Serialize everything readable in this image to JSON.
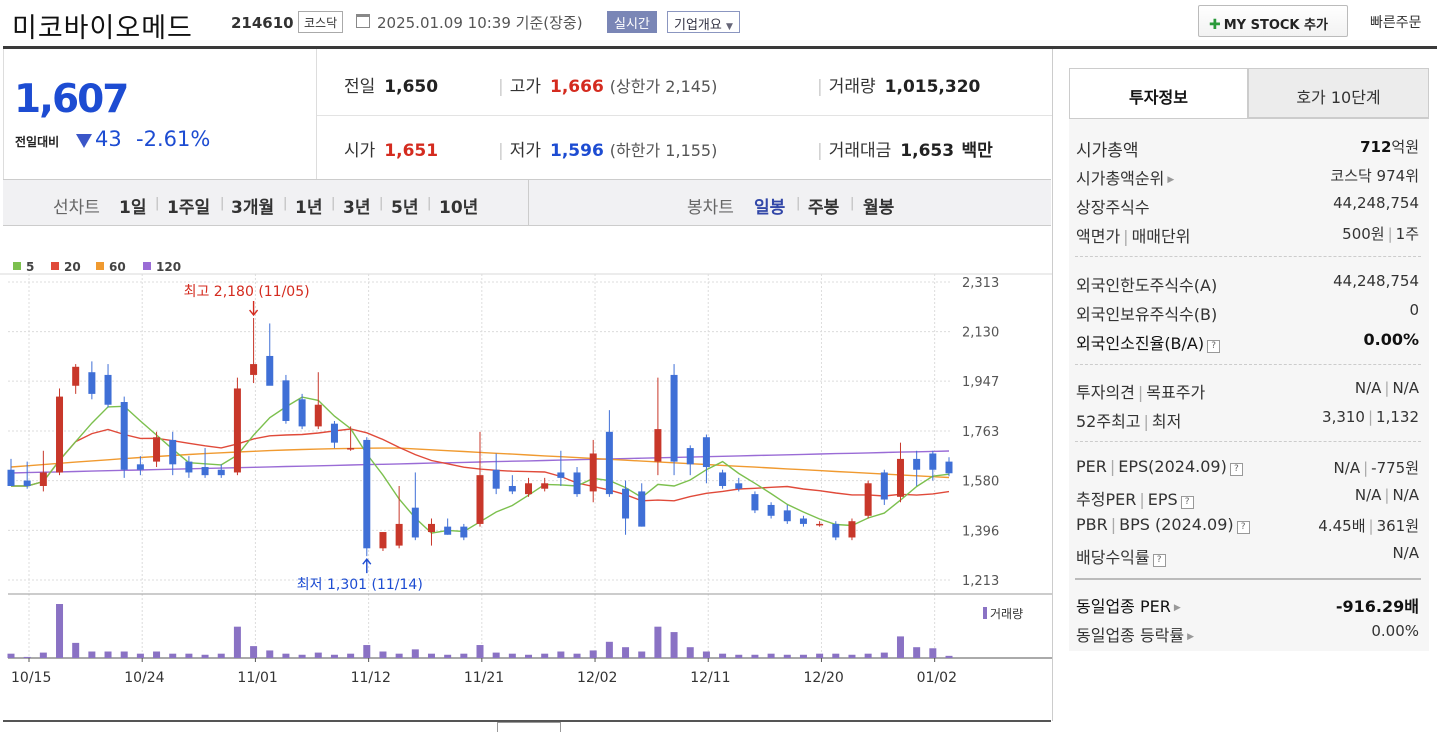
{
  "header": {
    "company_name": "미코바이오메드",
    "stock_code": "214610",
    "market_badge": "코스닥",
    "datetime": "2025.01.09 10:39",
    "basis": "기준(장중)",
    "realtime_label": "실시간",
    "overview_label": "기업개요",
    "mystock_label": "MY STOCK 추가",
    "quick_order_label": "빠른주문"
  },
  "price": {
    "current": "1,607",
    "change_label": "전일대비",
    "change": "43",
    "change_pct": "-2.61%",
    "prev_close_label": "전일",
    "prev_close": "1,650",
    "open_label": "시가",
    "open": "1,651",
    "high_label": "고가",
    "high": "1,666",
    "upper_limit_label": "(상한가",
    "upper_limit": "2,145)",
    "low_label": "저가",
    "low": "1,596",
    "lower_limit_label": "(하한가",
    "lower_limit": "1,155)",
    "volume_label": "거래량",
    "volume": "1,015,320",
    "amount_label": "거래대금",
    "amount": "1,653",
    "amount_unit": "백만"
  },
  "period_bar": {
    "line_chart_label": "선차트",
    "periods": [
      "1일",
      "1주일",
      "3개월",
      "1년",
      "3년",
      "5년",
      "10년"
    ],
    "candle_label": "봉차트",
    "candle_types": [
      "일봉",
      "주봉",
      "월봉"
    ],
    "selected_candle": "일봉"
  },
  "right_panel": {
    "tabs": [
      "투자정보",
      "호가 10단계"
    ],
    "active_tab": "투자정보",
    "market_cap_label": "시가총액",
    "market_cap_value": "712",
    "market_cap_unit": "억원",
    "market_cap_rank_label": "시가총액순위",
    "market_cap_rank": "코스닥 974위",
    "shares_label": "상장주식수",
    "shares": "44,248,754",
    "par_label": "액면가",
    "trade_unit_label": "매매단위",
    "par_value": "500원",
    "trade_unit": "1주",
    "foreign_limit_label": "외국인한도주식수(A)",
    "foreign_limit": "44,248,754",
    "foreign_hold_label": "외국인보유주식수(B)",
    "foreign_hold": "0",
    "foreign_ratio_label": "외국인소진율(B/A)",
    "foreign_ratio": "0.00%",
    "opinion_label": "투자의견",
    "target_label": "목표주가",
    "opinion": "N/A",
    "target": "N/A",
    "w52_high_label": "52주최고",
    "w52_low_label": "최저",
    "w52_high": "3,310",
    "w52_low": "1,132",
    "per_label": "PER",
    "eps_label": "EPS(2024.09)",
    "per": "N/A",
    "eps": "-775원",
    "est_per_label": "추정PER",
    "est_eps_label": "EPS",
    "est_per": "N/A",
    "est_eps": "N/A",
    "pbr_label": "PBR",
    "bps_label": "BPS (2024.09)",
    "pbr": "4.45배",
    "bps": "361원",
    "dividend_label": "배당수익률",
    "dividend": "N/A",
    "industry_per_label": "동일업종 PER",
    "industry_per": "-916.29배",
    "industry_change_label": "동일업종 등락률",
    "industry_change": "0.00%"
  },
  "colors": {
    "up": "#d42b1f",
    "down": "#1d4cd2",
    "candle_up": "#c8372a",
    "candle_down": "#3f6fd6",
    "ma5": "#7cc04e",
    "ma20": "#e04a3a",
    "ma60": "#f09a30",
    "ma120": "#9a6cd6",
    "volume": "#8a72c4"
  },
  "chart_data": {
    "type": "candlestick",
    "legend": [
      "5",
      "20",
      "60",
      "120"
    ],
    "y_ticks": [
      "2,313",
      "2,130",
      "1,947",
      "1,763",
      "1,580",
      "1,396",
      "1,213"
    ],
    "ylim": [
      1213,
      2313
    ],
    "x_ticks": [
      "10/15",
      "10/24",
      "11/01",
      "11/12",
      "11/21",
      "12/02",
      "12/11",
      "12/20",
      "01/02"
    ],
    "high_annotation": "최고 2,180 (11/05)",
    "low_annotation": "최저 1,301 (11/14)",
    "volume_label": "거래량",
    "candles": [
      {
        "o": 1620,
        "h": 1660,
        "l": 1560,
        "c": 1560
      },
      {
        "o": 1580,
        "h": 1650,
        "l": 1550,
        "c": 1560
      },
      {
        "o": 1560,
        "h": 1690,
        "l": 1540,
        "c": 1610
      },
      {
        "o": 1610,
        "h": 1920,
        "l": 1600,
        "c": 1890
      },
      {
        "o": 1930,
        "h": 2010,
        "l": 1900,
        "c": 2000
      },
      {
        "o": 1980,
        "h": 2020,
        "l": 1880,
        "c": 1900
      },
      {
        "o": 1970,
        "h": 2010,
        "l": 1850,
        "c": 1860
      },
      {
        "o": 1870,
        "h": 1890,
        "l": 1590,
        "c": 1620
      },
      {
        "o": 1640,
        "h": 1670,
        "l": 1600,
        "c": 1620
      },
      {
        "o": 1650,
        "h": 1760,
        "l": 1630,
        "c": 1740
      },
      {
        "o": 1730,
        "h": 1760,
        "l": 1600,
        "c": 1640
      },
      {
        "o": 1650,
        "h": 1670,
        "l": 1590,
        "c": 1610
      },
      {
        "o": 1630,
        "h": 1700,
        "l": 1590,
        "c": 1600
      },
      {
        "o": 1620,
        "h": 1640,
        "l": 1590,
        "c": 1600
      },
      {
        "o": 1610,
        "h": 1960,
        "l": 1600,
        "c": 1920
      },
      {
        "o": 1970,
        "h": 2180,
        "l": 1940,
        "c": 2010
      },
      {
        "o": 2040,
        "h": 2160,
        "l": 1940,
        "c": 1930
      },
      {
        "o": 1950,
        "h": 1970,
        "l": 1790,
        "c": 1800
      },
      {
        "o": 1880,
        "h": 1900,
        "l": 1770,
        "c": 1780
      },
      {
        "o": 1780,
        "h": 1980,
        "l": 1770,
        "c": 1860
      },
      {
        "o": 1790,
        "h": 1800,
        "l": 1700,
        "c": 1720
      },
      {
        "o": 1700,
        "h": 1780,
        "l": 1690,
        "c": 1700
      },
      {
        "o": 1730,
        "h": 1740,
        "l": 1301,
        "c": 1330
      },
      {
        "o": 1330,
        "h": 1390,
        "l": 1320,
        "c": 1390
      },
      {
        "o": 1340,
        "h": 1560,
        "l": 1330,
        "c": 1420
      },
      {
        "o": 1480,
        "h": 1610,
        "l": 1360,
        "c": 1370
      },
      {
        "o": 1390,
        "h": 1440,
        "l": 1340,
        "c": 1420
      },
      {
        "o": 1410,
        "h": 1440,
        "l": 1380,
        "c": 1380
      },
      {
        "o": 1410,
        "h": 1420,
        "l": 1360,
        "c": 1370
      },
      {
        "o": 1420,
        "h": 1760,
        "l": 1410,
        "c": 1600
      },
      {
        "o": 1620,
        "h": 1680,
        "l": 1530,
        "c": 1550
      },
      {
        "o": 1560,
        "h": 1600,
        "l": 1530,
        "c": 1540
      },
      {
        "o": 1530,
        "h": 1590,
        "l": 1520,
        "c": 1570
      },
      {
        "o": 1550,
        "h": 1590,
        "l": 1540,
        "c": 1570
      },
      {
        "o": 1610,
        "h": 1690,
        "l": 1560,
        "c": 1590
      },
      {
        "o": 1610,
        "h": 1630,
        "l": 1520,
        "c": 1530
      },
      {
        "o": 1540,
        "h": 1730,
        "l": 1500,
        "c": 1680
      },
      {
        "o": 1760,
        "h": 1840,
        "l": 1520,
        "c": 1530
      },
      {
        "o": 1550,
        "h": 1580,
        "l": 1380,
        "c": 1440
      },
      {
        "o": 1540,
        "h": 1570,
        "l": 1410,
        "c": 1410
      },
      {
        "o": 1650,
        "h": 1960,
        "l": 1600,
        "c": 1770
      },
      {
        "o": 1970,
        "h": 2010,
        "l": 1600,
        "c": 1650
      },
      {
        "o": 1700,
        "h": 1710,
        "l": 1600,
        "c": 1640
      },
      {
        "o": 1740,
        "h": 1750,
        "l": 1570,
        "c": 1630
      },
      {
        "o": 1610,
        "h": 1620,
        "l": 1550,
        "c": 1560
      },
      {
        "o": 1570,
        "h": 1590,
        "l": 1540,
        "c": 1550
      },
      {
        "o": 1530,
        "h": 1540,
        "l": 1460,
        "c": 1470
      },
      {
        "o": 1490,
        "h": 1500,
        "l": 1440,
        "c": 1450
      },
      {
        "o": 1470,
        "h": 1490,
        "l": 1420,
        "c": 1430
      },
      {
        "o": 1440,
        "h": 1450,
        "l": 1410,
        "c": 1420
      },
      {
        "o": 1420,
        "h": 1430,
        "l": 1410,
        "c": 1420
      },
      {
        "o": 1420,
        "h": 1430,
        "l": 1360,
        "c": 1370
      },
      {
        "o": 1370,
        "h": 1440,
        "l": 1360,
        "c": 1430
      },
      {
        "o": 1450,
        "h": 1580,
        "l": 1440,
        "c": 1570
      },
      {
        "o": 1610,
        "h": 1620,
        "l": 1490,
        "c": 1510
      },
      {
        "o": 1520,
        "h": 1720,
        "l": 1500,
        "c": 1660
      },
      {
        "o": 1660,
        "h": 1690,
        "l": 1560,
        "c": 1620
      },
      {
        "o": 1680,
        "h": 1690,
        "l": 1580,
        "c": 1620
      },
      {
        "o": 1650,
        "h": 1666,
        "l": 1596,
        "c": 1607
      }
    ],
    "volumes": [
      8,
      2,
      10,
      100,
      28,
      12,
      12,
      12,
      8,
      12,
      8,
      8,
      6,
      8,
      58,
      22,
      14,
      8,
      6,
      10,
      6,
      8,
      24,
      12,
      8,
      16,
      8,
      6,
      8,
      24,
      10,
      8,
      6,
      8,
      12,
      8,
      14,
      30,
      20,
      12,
      58,
      48,
      20,
      12,
      8,
      6,
      6,
      8,
      6,
      6,
      8,
      8,
      6,
      8,
      10,
      40,
      20,
      18,
      4
    ],
    "x_tick_indices": [
      0,
      7,
      14,
      21,
      28,
      35,
      42,
      49,
      56
    ]
  }
}
